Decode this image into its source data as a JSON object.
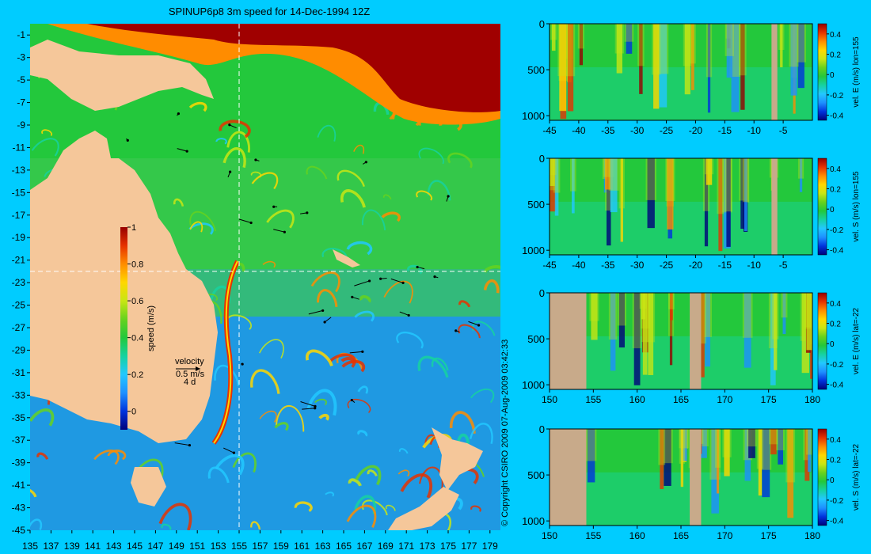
{
  "colors": {
    "background": "#00ccff",
    "land": "#f5c79a",
    "section_land": "#c8aa8a",
    "guide_line": "#ffffff"
  },
  "colormap": [
    "#00007a",
    "#0033dd",
    "#1e90ff",
    "#22c8ff",
    "#16d2a0",
    "#23c83c",
    "#66d21e",
    "#c8e614",
    "#ffd700",
    "#ff8c00",
    "#e63200",
    "#960000"
  ],
  "chart_data": [
    {
      "type": "heatmap",
      "panel": "map",
      "title": "SPINUP6p8 3m speed for 14-Dec-1994 12Z",
      "xlabel": "",
      "ylabel": "",
      "xlim": [
        135,
        180
      ],
      "ylim": [
        -45,
        0
      ],
      "x_ticks": [
        "135",
        "137",
        "139",
        "141",
        "143",
        "145",
        "147",
        "149",
        "151",
        "153",
        "155",
        "157",
        "159",
        "161",
        "163",
        "165",
        "167",
        "169",
        "171",
        "173",
        "175",
        "177",
        "179"
      ],
      "y_ticks": [
        "-1",
        "-3",
        "-5",
        "-7",
        "-9",
        "-11",
        "-13",
        "-15",
        "-17",
        "-19",
        "-21",
        "-23",
        "-25",
        "-27",
        "-29",
        "-31",
        "-33",
        "-35",
        "-37",
        "-39",
        "-41",
        "-43",
        "-45"
      ],
      "guide_lines": {
        "lon": 155,
        "lat": -22
      },
      "colorbar": {
        "label": "speed (m/s)",
        "range": [
          -0.1,
          1
        ],
        "ticks": [
          "1",
          "0.8",
          "0.6",
          "0.4",
          "0.2",
          "0"
        ]
      },
      "velocity_key": {
        "title": "velocity",
        "speed": "0.5 m/s",
        "time": "4 d"
      }
    },
    {
      "type": "heatmap",
      "panel": "section",
      "xlim": [
        -45,
        0
      ],
      "ylim": [
        1050,
        0
      ],
      "x_ticks": [
        "-45",
        "-40",
        "-35",
        "-30",
        "-25",
        "-20",
        "-15",
        "-10",
        "-5"
      ],
      "y_ticks": [
        "0",
        "500",
        "1000"
      ],
      "colorbar": {
        "label": "vel. E (m/s) lon=155",
        "range": [
          -0.45,
          0.5
        ],
        "ticks": [
          "0.4",
          "0.2",
          "0",
          "-0.2",
          "-0.4"
        ]
      },
      "land_spans": [
        [
          -7,
          -6
        ]
      ]
    },
    {
      "type": "heatmap",
      "panel": "section",
      "xlim": [
        -45,
        0
      ],
      "ylim": [
        1050,
        0
      ],
      "x_ticks": [
        "-45",
        "-40",
        "-35",
        "-30",
        "-25",
        "-20",
        "-15",
        "-10",
        "-5"
      ],
      "y_ticks": [
        "0",
        "500",
        "1000"
      ],
      "colorbar": {
        "label": "vel. S (m/s) lon=155",
        "range": [
          -0.45,
          0.5
        ],
        "ticks": [
          "0.4",
          "0.2",
          "0",
          "-0.2",
          "-0.4"
        ]
      },
      "land_spans": [
        [
          -7,
          -6
        ]
      ]
    },
    {
      "type": "heatmap",
      "panel": "section",
      "xlim": [
        150,
        180
      ],
      "ylim": [
        1050,
        0
      ],
      "x_ticks": [
        "150",
        "155",
        "160",
        "165",
        "170",
        "175",
        "180"
      ],
      "y_ticks": [
        "0",
        "500",
        "1000"
      ],
      "colorbar": {
        "label": "vel. E (m/s) lat=-22",
        "range": [
          -0.45,
          0.5
        ],
        "ticks": [
          "0.4",
          "0.2",
          "0",
          "-0.2",
          "-0.4"
        ]
      },
      "land_spans": [
        [
          150,
          154.2
        ],
        [
          166,
          167.3
        ]
      ]
    },
    {
      "type": "heatmap",
      "panel": "section",
      "xlim": [
        150,
        180
      ],
      "ylim": [
        1050,
        0
      ],
      "x_ticks": [
        "150",
        "155",
        "160",
        "165",
        "170",
        "175",
        "180"
      ],
      "y_ticks": [
        "0",
        "500",
        "1000"
      ],
      "colorbar": {
        "label": "vel. S (m/s) lat=-22",
        "range": [
          -0.45,
          0.5
        ],
        "ticks": [
          "0.4",
          "0.2",
          "0",
          "-0.2",
          "-0.4"
        ]
      },
      "land_spans": [
        [
          150,
          154.2
        ],
        [
          166,
          167.3
        ]
      ]
    }
  ],
  "copyright": "© Copyright CSIRO 2009   07-Aug-2009 03:42:33"
}
